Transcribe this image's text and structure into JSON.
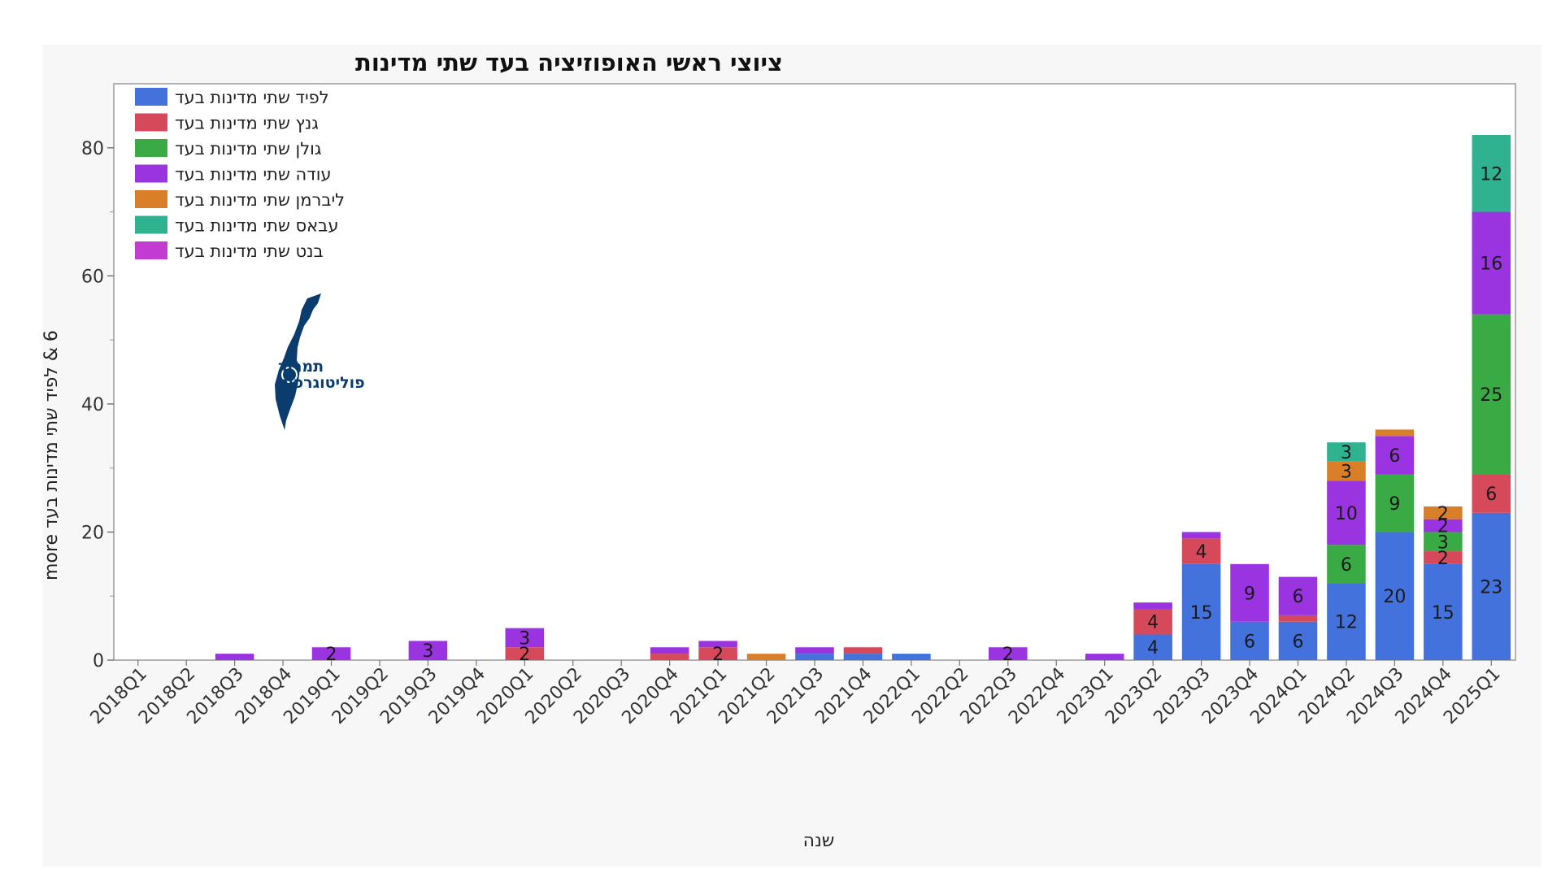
{
  "chart_data": {
    "type": "bar",
    "stacked": true,
    "title": "ציוצי ראשי האופוזיציה בעד שתי מדינות",
    "xlabel": "שנה",
    "ylabel": "6 & לפיד שתי מדינות בעד more",
    "ylim": [
      0,
      90
    ],
    "yticks": [
      0,
      20,
      40,
      60,
      80
    ],
    "grid": false,
    "legend_position": "top-left",
    "categories": [
      "2018Q1",
      "2018Q2",
      "2018Q3",
      "2018Q4",
      "2019Q1",
      "2019Q2",
      "2019Q3",
      "2019Q4",
      "2020Q1",
      "2020Q2",
      "2020Q3",
      "2020Q4",
      "2021Q1",
      "2021Q2",
      "2021Q3",
      "2021Q4",
      "2022Q1",
      "2022Q2",
      "2022Q3",
      "2022Q4",
      "2023Q1",
      "2023Q2",
      "2023Q3",
      "2023Q4",
      "2024Q1",
      "2024Q2",
      "2024Q3",
      "2024Q4",
      "2025Q1"
    ],
    "series": [
      {
        "name": "לפיד שתי מדינות בעד",
        "color": "#4472dc",
        "values": [
          0,
          0,
          0,
          0,
          0,
          0,
          0,
          0,
          0,
          0,
          0,
          0,
          0,
          0,
          1,
          1,
          1,
          0,
          0,
          0,
          0,
          4,
          15,
          6,
          6,
          12,
          20,
          15,
          23
        ]
      },
      {
        "name": "גנץ שתי מדינות בעד",
        "color": "#d5495a",
        "values": [
          0,
          0,
          0,
          0,
          0,
          0,
          0,
          0,
          2,
          0,
          0,
          1,
          2,
          0,
          0,
          1,
          0,
          0,
          0,
          0,
          0,
          4,
          4,
          0,
          1,
          0,
          0,
          2,
          6
        ]
      },
      {
        "name": "גולן שתי מדינות בעד",
        "color": "#3aaa45",
        "values": [
          0,
          0,
          0,
          0,
          0,
          0,
          0,
          0,
          0,
          0,
          0,
          0,
          0,
          0,
          0,
          0,
          0,
          0,
          0,
          0,
          0,
          0,
          0,
          0,
          0,
          6,
          9,
          3,
          25
        ]
      },
      {
        "name": "עודה שתי מדינות בעד",
        "color": "#9a33e0",
        "values": [
          0,
          0,
          1,
          0,
          2,
          0,
          3,
          0,
          3,
          0,
          0,
          1,
          1,
          0,
          1,
          0,
          0,
          0,
          2,
          0,
          1,
          1,
          1,
          9,
          6,
          10,
          6,
          2,
          16
        ]
      },
      {
        "name": "ליברמן   שתי מדינות בעד",
        "color": "#d97f2a",
        "values": [
          0,
          0,
          0,
          0,
          0,
          0,
          0,
          0,
          0,
          0,
          0,
          0,
          0,
          1,
          0,
          0,
          0,
          0,
          0,
          0,
          0,
          0,
          0,
          0,
          0,
          3,
          1,
          2,
          0
        ]
      },
      {
        "name": "עבאס שתי מדינות בעד",
        "color": "#2fb28f",
        "values": [
          0,
          0,
          0,
          0,
          0,
          0,
          0,
          0,
          0,
          0,
          0,
          0,
          0,
          0,
          0,
          0,
          0,
          0,
          0,
          0,
          0,
          0,
          0,
          0,
          0,
          3,
          0,
          0,
          12
        ]
      },
      {
        "name": "בנט שתי מדינות בעד",
        "color": "#c23bd3",
        "values": [
          0,
          0,
          0,
          0,
          0,
          0,
          0,
          0,
          0,
          0,
          0,
          0,
          0,
          0,
          0,
          0,
          0,
          0,
          0,
          0,
          0,
          0,
          0,
          0,
          0,
          0,
          0,
          0,
          0
        ]
      }
    ]
  },
  "logo": {
    "line1": "תמרור",
    "line2": "פוליטוגרפיה",
    "icon": "israel-map-icon"
  }
}
